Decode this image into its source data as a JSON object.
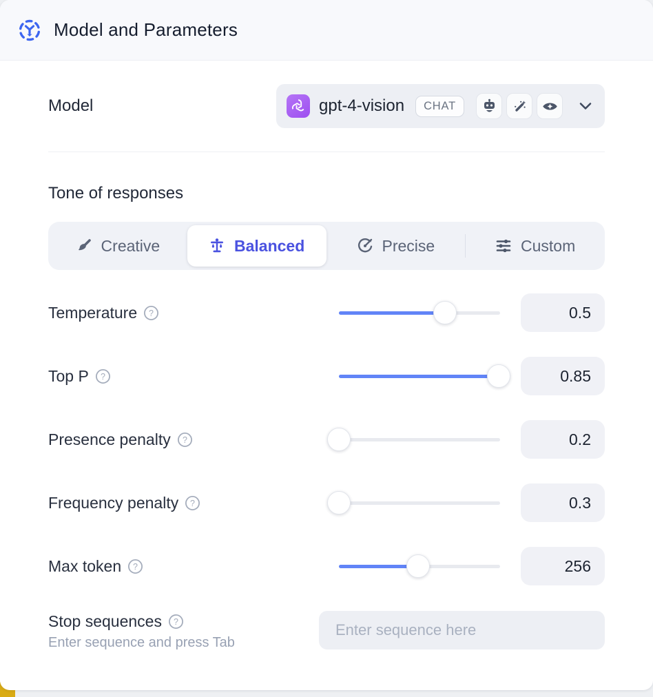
{
  "header": {
    "title": "Model and Parameters"
  },
  "model": {
    "label": "Model",
    "selected_model": "gpt-4-vision",
    "type_badge": "CHAT",
    "provider_icon": "openai-logo",
    "capability_icons": [
      "robot-icon",
      "wand-sparkles-icon",
      "vision-eye-icon"
    ]
  },
  "tone": {
    "heading": "Tone of responses",
    "options": [
      {
        "label": "Creative",
        "icon": "paintbrush-icon",
        "selected": false
      },
      {
        "label": "Balanced",
        "icon": "scales-icon",
        "selected": true
      },
      {
        "label": "Precise",
        "icon": "target-icon",
        "selected": false
      },
      {
        "label": "Custom",
        "icon": "sliders-icon",
        "selected": false
      }
    ]
  },
  "parameters": [
    {
      "label": "Temperature",
      "value": "0.5",
      "fill_pct": 66
    },
    {
      "label": "Top P",
      "value": "0.85",
      "fill_pct": 99
    },
    {
      "label": "Presence penalty",
      "value": "0.2",
      "fill_pct": 0
    },
    {
      "label": "Frequency penalty",
      "value": "0.3",
      "fill_pct": 0
    },
    {
      "label": "Max token",
      "value": "256",
      "fill_pct": 49
    }
  ],
  "stop_sequences": {
    "label": "Stop sequences",
    "helper": "Enter sequence and press Tab",
    "placeholder": "Enter sequence here"
  },
  "colors": {
    "accent_blue": "#6184f7",
    "selected_indigo": "#4a52e0",
    "header_icon_blue": "#3d66f0",
    "openai_purple": "#9d4ef0",
    "header_bg": "#f8f9fc",
    "control_bg": "#edeff4",
    "corner_accent_yellow": "#d9ab15"
  }
}
